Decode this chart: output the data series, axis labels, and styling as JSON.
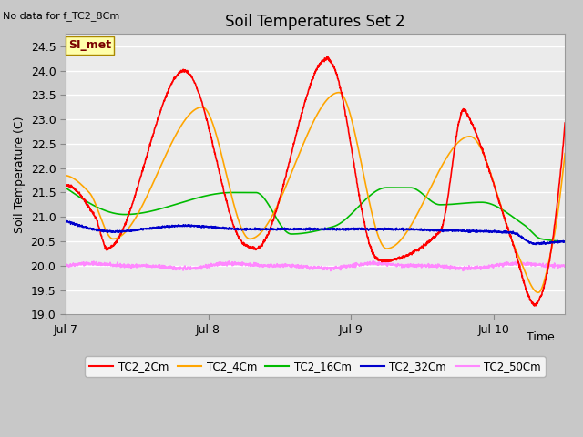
{
  "title": "Soil Temperatures Set 2",
  "ylabel": "Soil Temperature (C)",
  "xlabel": "Time",
  "top_left_note": "No data for f_TC2_8Cm",
  "annotation_box": "SI_met",
  "ylim": [
    19.0,
    24.75
  ],
  "yticks": [
    19.0,
    19.5,
    20.0,
    20.5,
    21.0,
    21.5,
    22.0,
    22.5,
    23.0,
    23.5,
    24.0,
    24.5
  ],
  "xtick_labels": [
    "Jul 7",
    "Jul 8",
    "Jul 9",
    "Jul 10"
  ],
  "xtick_positions": [
    0,
    24,
    48,
    72
  ],
  "xlim": [
    0,
    84
  ],
  "fig_facecolor": "#c8c8c8",
  "plot_facecolor": "#ebebeb",
  "grid_color": "#ffffff",
  "series": {
    "TC2_2Cm": {
      "color": "#ff0000",
      "lw": 1.2
    },
    "TC2_4Cm": {
      "color": "#ffa500",
      "lw": 1.2
    },
    "TC2_16Cm": {
      "color": "#00bb00",
      "lw": 1.2
    },
    "TC2_32Cm": {
      "color": "#0000cc",
      "lw": 1.2
    },
    "TC2_50Cm": {
      "color": "#ff88ff",
      "lw": 1.2
    }
  },
  "legend_labels": [
    "TC2_2Cm",
    "TC2_4Cm",
    "TC2_16Cm",
    "TC2_32Cm",
    "TC2_50Cm"
  ]
}
